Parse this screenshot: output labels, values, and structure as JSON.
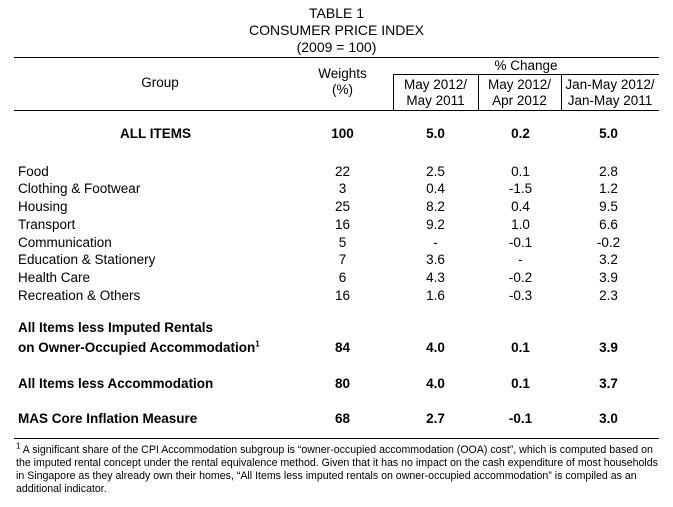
{
  "title": {
    "line1": "TABLE 1",
    "line2": "CONSUMER PRICE INDEX",
    "line3": "(2009 = 100)"
  },
  "header": {
    "group": "Group",
    "weights_line1": "Weights",
    "weights_line2": "(%)",
    "pct_change": "% Change",
    "col2_line1": "May 2012/",
    "col2_line2": "May 2011",
    "col3_line1": "May 2012/",
    "col3_line2": "Apr 2012",
    "col4_line1": "Jan-May 2012/",
    "col4_line2": "Jan-May 2011"
  },
  "rows": [
    {
      "label": "ALL ITEMS",
      "weight": "100",
      "yoy": "5.0",
      "mom": "0.2",
      "ytd": "5.0"
    },
    {
      "label": "Food",
      "weight": "22",
      "yoy": "2.5",
      "mom": "0.1",
      "ytd": "2.8"
    },
    {
      "label": "Clothing & Footwear",
      "weight": "3",
      "yoy": "0.4",
      "mom": "-1.5",
      "ytd": "1.2"
    },
    {
      "label": "Housing",
      "weight": "25",
      "yoy": "8.2",
      "mom": "0.4",
      "ytd": "9.5"
    },
    {
      "label": "Transport",
      "weight": "16",
      "yoy": "9.2",
      "mom": "1.0",
      "ytd": "6.6"
    },
    {
      "label": "Communication",
      "weight": "5",
      "yoy": "-",
      "mom": "-0.1",
      "ytd": "-0.2"
    },
    {
      "label": "Education & Stationery",
      "weight": "7",
      "yoy": "3.6",
      "mom": "-",
      "ytd": "3.2"
    },
    {
      "label": "Health Care",
      "weight": "6",
      "yoy": "4.3",
      "mom": "-0.2",
      "ytd": "3.9"
    },
    {
      "label": "Recreation & Others",
      "weight": "16",
      "yoy": "1.6",
      "mom": "-0.3",
      "ytd": "2.3"
    },
    {
      "label_line1": "All Items less Imputed Rentals",
      "label_line2": "on Owner-Occupied Accommodation",
      "footnote_mark": "1",
      "weight": "84",
      "yoy": "4.0",
      "mom": "0.1",
      "ytd": "3.9"
    },
    {
      "label": "All Items less Accommodation",
      "weight": "80",
      "yoy": "4.0",
      "mom": "0.1",
      "ytd": "3.7"
    },
    {
      "label": "MAS Core Inflation Measure",
      "weight": "68",
      "yoy": "2.7",
      "mom": "-0.1",
      "ytd": "3.0"
    }
  ],
  "footnote": {
    "mark": "1",
    "text": " A significant share of the CPI Accommodation subgroup is “owner-occupied accommodation (OOA) cost”, which is computed based on the imputed rental concept under the rental equivalence method. Given that it has no impact on the cash expenditure of most households in Singapore as they already own their homes, “All Items less imputed rentals on owner-occupied accommodation” is compiled as an additional indicator."
  }
}
